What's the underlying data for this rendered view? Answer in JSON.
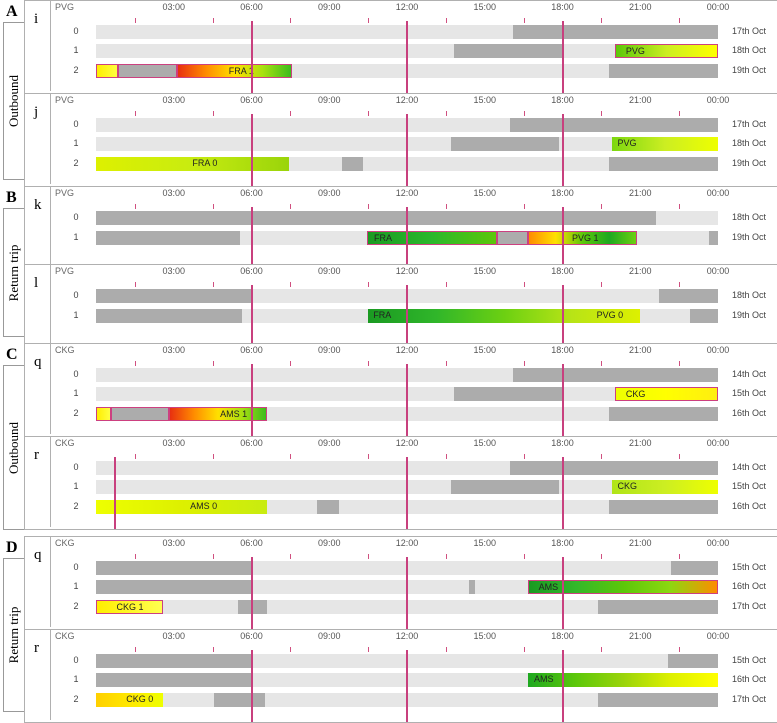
{
  "sections": [
    {
      "letter": "A",
      "side": "Outbound",
      "top": 0
    },
    {
      "letter": "B",
      "side": "Return trip",
      "top": 186
    },
    {
      "letter": "C",
      "side": "Outbound",
      "top": 343
    },
    {
      "letter": "D",
      "side": "Return trip",
      "top": 536
    }
  ],
  "ticks": [
    "03:00",
    "06:00",
    "09:00",
    "12:00",
    "15:00",
    "18:00",
    "21:00",
    "00:00"
  ],
  "panels": [
    {
      "label": "i",
      "airport": "PVG",
      "top": 0,
      "rows": [
        {
          "num": "0",
          "date": "17th Oct",
          "segs": [
            {
              "t": "gray",
              "s": 0.67,
              "e": 1
            }
          ]
        },
        {
          "num": "1",
          "date": "18th Oct",
          "segs": [
            {
              "t": "gray",
              "s": 0.575,
              "e": 0.75
            },
            {
              "t": "grad",
              "g": "linear-gradient(to right,#5cc70a,#ccee22,#ffff00)",
              "s": 0.834,
              "e": 1,
              "o": true,
              "label": "PVG",
              "lp": 0.1
            }
          ]
        },
        {
          "num": "2",
          "date": "19th Oct",
          "segs": [
            {
              "t": "grad",
              "g": "linear-gradient(to right,#ffee00,#ffff40)",
              "s": 0,
              "e": 0.035,
              "o": true
            },
            {
              "t": "gray",
              "s": 0.035,
              "e": 0.13,
              "o": true
            },
            {
              "t": "grad",
              "g": "linear-gradient(to right,#e83010,#ff8c00,#ffe000,#a8e010,#3cbc1c)",
              "s": 0.13,
              "e": 0.315,
              "o": true,
              "label": "FRA  1",
              "lp": 0.45
            },
            {
              "t": "gray",
              "s": 0.825,
              "e": 1
            }
          ]
        }
      ],
      "vlines": [
        0.25,
        0.5,
        0.75
      ]
    },
    {
      "label": "j",
      "airport": "PVG",
      "top": 93,
      "rows": [
        {
          "num": "0",
          "date": "17th Oct",
          "segs": [
            {
              "t": "gray",
              "s": 0.665,
              "e": 1
            }
          ]
        },
        {
          "num": "1",
          "date": "18th Oct",
          "segs": [
            {
              "t": "gray",
              "s": 0.57,
              "e": 0.745
            },
            {
              "t": "grad",
              "g": "linear-gradient(to right,#7cd710,#ccee22,#eeff00)",
              "s": 0.83,
              "e": 1,
              "label": "PVG",
              "lp": 0.05
            }
          ]
        },
        {
          "num": "2",
          "date": "19th Oct",
          "segs": [
            {
              "t": "grad",
              "g": "linear-gradient(to right,#ddf000,#c8ec10,#9ad40a)",
              "s": 0,
              "e": 0.31,
              "label": "FRA  0",
              "lp": 0.5
            },
            {
              "t": "gray",
              "s": 0.395,
              "e": 0.43
            },
            {
              "t": "gray",
              "s": 0.825,
              "e": 1
            }
          ]
        }
      ],
      "vlines": [
        0.25,
        0.5,
        0.75
      ]
    },
    {
      "label": "k",
      "airport": "PVG",
      "top": 186,
      "rows": [
        {
          "num": "0",
          "date": "18th Oct",
          "segs": [
            {
              "t": "gray",
              "s": 0,
              "e": 0.9
            }
          ]
        },
        {
          "num": "1",
          "date": "19th Oct",
          "segs": [
            {
              "t": "gray",
              "s": 0,
              "e": 0.232
            },
            {
              "t": "grad",
              "g": "linear-gradient(to right,#1a9a22,#2bb82c,#5cc70a)",
              "s": 0.435,
              "e": 0.645,
              "o": true,
              "label": "FRA",
              "lp": 0.05
            },
            {
              "t": "gray",
              "s": 0.645,
              "e": 0.695,
              "o": true
            },
            {
              "t": "grad",
              "g": "linear-gradient(to right,#ff8c00,#ffe000,#5cc70a,#1ea820,#6cd012)",
              "s": 0.695,
              "e": 0.87,
              "o": true,
              "label": "PVG  1",
              "lp": 0.4
            },
            {
              "t": "gray",
              "s": 0.985,
              "e": 1
            }
          ]
        }
      ],
      "vlines": [
        0.25,
        0.5,
        0.75
      ]
    },
    {
      "label": "l",
      "airport": "PVG",
      "top": 264,
      "rows": [
        {
          "num": "0",
          "date": "18th Oct",
          "segs": [
            {
              "t": "gray",
              "s": 0,
              "e": 0.25
            },
            {
              "t": "gray",
              "s": 0.905,
              "e": 1
            }
          ]
        },
        {
          "num": "1",
          "date": "19th Oct",
          "segs": [
            {
              "t": "gray",
              "s": 0,
              "e": 0.235
            },
            {
              "t": "grad",
              "g": "linear-gradient(to right,#1a9a22,#30b62a,#6cd012,#b8e416,#ddf000)",
              "s": 0.437,
              "e": 0.875,
              "label": "FRA",
              "lp": 0.02,
              "label2": "PVG  0",
              "lp2": 0.84
            },
            {
              "t": "gray",
              "s": 0.955,
              "e": 1
            }
          ]
        }
      ],
      "vlines": [
        0.25,
        0.5,
        0.75
      ]
    },
    {
      "label": "q",
      "airport": "CKG",
      "top": 343,
      "rows": [
        {
          "num": "0",
          "date": "14th Oct",
          "segs": [
            {
              "t": "gray",
              "s": 0.67,
              "e": 1
            }
          ]
        },
        {
          "num": "1",
          "date": "15th Oct",
          "segs": [
            {
              "t": "gray",
              "s": 0.575,
              "e": 0.75
            },
            {
              "t": "grad",
              "g": "linear-gradient(to right,#eeff00,#ffff00,#ffee10)",
              "s": 0.834,
              "e": 1,
              "o": true,
              "label": "CKG",
              "lp": 0.1
            }
          ]
        },
        {
          "num": "2",
          "date": "16th Oct",
          "segs": [
            {
              "t": "grad",
              "g": "linear-gradient(to right,#ffee00,#ffff40)",
              "s": 0,
              "e": 0.024,
              "o": true
            },
            {
              "t": "gray",
              "s": 0.024,
              "e": 0.118,
              "o": true
            },
            {
              "t": "grad",
              "g": "linear-gradient(to right,#e83010,#ff8c00,#ffe000,#a8e010,#3cbc1c)",
              "s": 0.118,
              "e": 0.275,
              "o": true,
              "label": "AMS  1",
              "lp": 0.52
            },
            {
              "t": "gray",
              "s": 0.825,
              "e": 1
            }
          ]
        }
      ],
      "vlines": [
        0.25,
        0.5,
        0.75
      ]
    },
    {
      "label": "r",
      "airport": "CKG",
      "top": 436,
      "rows": [
        {
          "num": "0",
          "date": "14th Oct",
          "segs": [
            {
              "t": "gray",
              "s": 0.665,
              "e": 1
            }
          ]
        },
        {
          "num": "1",
          "date": "15th Oct",
          "segs": [
            {
              "t": "gray",
              "s": 0.57,
              "e": 0.745
            },
            {
              "t": "grad",
              "g": "linear-gradient(to right,#b0e418,#ccee22,#eeff00)",
              "s": 0.83,
              "e": 1,
              "label": "CKG",
              "lp": 0.05
            }
          ]
        },
        {
          "num": "2",
          "date": "16th Oct",
          "segs": [
            {
              "t": "grad",
              "g": "linear-gradient(to right,#eeff00,#ddf000,#c8ec10)",
              "s": 0,
              "e": 0.275,
              "label": "AMS  0",
              "lp": 0.55
            },
            {
              "t": "gray",
              "s": 0.355,
              "e": 0.39
            },
            {
              "t": "gray",
              "s": 0.825,
              "e": 1
            }
          ]
        }
      ],
      "vlines": [
        0.03,
        0.5,
        0.75
      ]
    },
    {
      "label": "q",
      "airport": "CKG",
      "top": 536,
      "rows": [
        {
          "num": "0",
          "date": "15th Oct",
          "segs": [
            {
              "t": "gray",
              "s": 0,
              "e": 0.25
            },
            {
              "t": "gray",
              "s": 0.925,
              "e": 1
            }
          ]
        },
        {
          "num": "1",
          "date": "16th Oct",
          "segs": [
            {
              "t": "gray",
              "s": 0,
              "e": 0.25
            },
            {
              "t": "gray",
              "s": 0.6,
              "e": 0.61
            },
            {
              "t": "grad",
              "g": "linear-gradient(to right,#1a9a22,#34b82a,#5cc70a,#8cd810,#ff8c00)",
              "s": 0.695,
              "e": 1,
              "o": true,
              "label": "AMS",
              "lp": 0.05
            }
          ]
        },
        {
          "num": "2",
          "date": "17th Oct",
          "segs": [
            {
              "t": "grad",
              "g": "linear-gradient(to right,#ffee00,#ffff50)",
              "s": 0,
              "e": 0.108,
              "o": true,
              "label": "CKG  1",
              "lp": 0.3
            },
            {
              "t": "gray",
              "s": 0.228,
              "e": 0.275
            },
            {
              "t": "gray",
              "s": 0.807,
              "e": 1
            }
          ]
        }
      ],
      "vlines": [
        0.25,
        0.5,
        0.75
      ]
    },
    {
      "label": "r",
      "airport": "CKG",
      "top": 629,
      "rows": [
        {
          "num": "0",
          "date": "15th Oct",
          "segs": [
            {
              "t": "gray",
              "s": 0,
              "e": 0.25
            },
            {
              "t": "gray",
              "s": 0.92,
              "e": 1
            }
          ]
        },
        {
          "num": "1",
          "date": "16th Oct",
          "segs": [
            {
              "t": "gray",
              "s": 0,
              "e": 0.25
            },
            {
              "t": "grad",
              "g": "linear-gradient(to right,#1ea820,#5cc70a,#9ad40a,#ddf000,#ffff00)",
              "s": 0.695,
              "e": 1,
              "label": "AMS",
              "lp": 0.03
            }
          ]
        },
        {
          "num": "2",
          "date": "17th Oct",
          "segs": [
            {
              "t": "grad",
              "g": "linear-gradient(to right,#ffd000,#ffe800,#eeff00)",
              "s": 0,
              "e": 0.108,
              "label": "CKG  0",
              "lp": 0.45
            },
            {
              "t": "gray",
              "s": 0.19,
              "e": 0.272
            },
            {
              "t": "gray",
              "s": 0.807,
              "e": 1
            }
          ]
        }
      ],
      "vlines": [
        0.25,
        0.5,
        0.75
      ]
    }
  ]
}
